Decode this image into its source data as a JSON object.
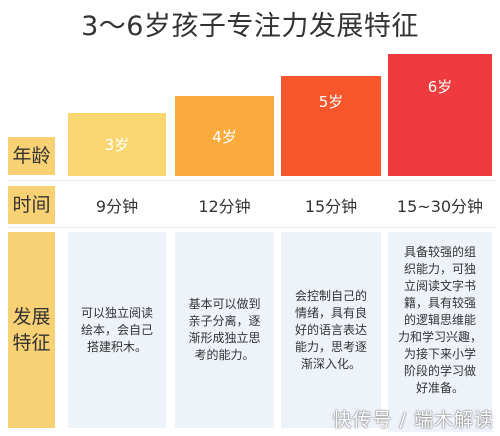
{
  "title": "3～6岁孩子专注力发展特征",
  "rows": {
    "age_label": "年龄",
    "time_label": "时间",
    "dev_label": "发展\n特征"
  },
  "columns": [
    {
      "age": "3岁",
      "time": "9分钟",
      "desc": [
        "可以独立阅读",
        "绘本，会自己",
        "搭建积木。"
      ]
    },
    {
      "age": "4岁",
      "time": "12分钟",
      "desc": [
        "基本可以做到",
        "亲子分离，逐",
        "渐形成独立思",
        "考的能力。"
      ]
    },
    {
      "age": "5岁",
      "time": "15分钟",
      "desc": [
        "会控制自己的",
        "情绪，具有良",
        "好的语言表达",
        "能力，思考逐",
        "渐深入化。"
      ]
    },
    {
      "age": "6岁",
      "time": "15~30分钟",
      "desc": [
        "具备较强的组",
        "织能力，可独",
        "立阅读文字书",
        "籍，具有较强",
        "的逻辑思维能",
        "力和学习兴趣，",
        "为接下来小学",
        "阶段的学习做",
        "好准备。"
      ]
    }
  ],
  "colors": {
    "age_3": "#f9d66f",
    "age_4": "#fbab3d",
    "age_5": "#f7562c",
    "age_6": "#ef3b3e",
    "label_bg": "#f7d173",
    "desc_bg": "#eef2f9"
  },
  "watermark": "快传号 / 端木解读"
}
